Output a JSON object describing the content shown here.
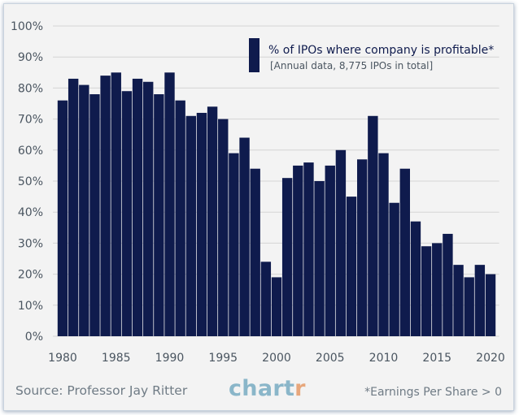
{
  "chart_data": {
    "type": "bar",
    "legend": {
      "label": "% of IPOs where company is profitable*",
      "note": "[Annual data, 8,775 IPOs in total]",
      "placement": "top-right"
    },
    "colors": {
      "bar": "#0f1b4d",
      "axis_text": "#4a5560",
      "grid": "#d4d4d4",
      "background": "#f3f3f3"
    },
    "ylim": [
      0,
      100
    ],
    "xlim": [
      1980,
      2020
    ],
    "grid": "horizontal",
    "y_ticks": [
      0,
      10,
      20,
      30,
      40,
      50,
      60,
      70,
      80,
      90,
      100
    ],
    "y_tick_labels": [
      "0%",
      "10%",
      "20%",
      "30%",
      "40%",
      "50%",
      "60%",
      "70%",
      "80%",
      "90%",
      "100%"
    ],
    "x_ticks": [
      1980,
      1985,
      1990,
      1995,
      2000,
      2005,
      2010,
      2015,
      2020
    ],
    "x_tick_labels": [
      "1980",
      "1985",
      "1990",
      "1995",
      "2000",
      "2005",
      "2010",
      "2015",
      "2020"
    ],
    "categories": [
      1980,
      1981,
      1982,
      1983,
      1984,
      1985,
      1986,
      1987,
      1988,
      1989,
      1990,
      1991,
      1992,
      1993,
      1994,
      1995,
      1996,
      1997,
      1998,
      1999,
      2000,
      2001,
      2002,
      2003,
      2004,
      2005,
      2006,
      2007,
      2008,
      2009,
      2010,
      2011,
      2012,
      2013,
      2014,
      2015,
      2016,
      2017,
      2018,
      2019,
      2020
    ],
    "values": [
      76,
      83,
      81,
      78,
      84,
      85,
      79,
      83,
      82,
      78,
      85,
      76,
      71,
      72,
      74,
      70,
      59,
      64,
      54,
      24,
      19,
      51,
      55,
      56,
      50,
      55,
      60,
      45,
      57,
      71,
      59,
      43,
      54,
      37,
      29,
      30,
      33,
      23,
      19,
      23,
      20
    ]
  },
  "footer": {
    "source": "Source: Professor Jay Ritter",
    "brand_main": "chart",
    "brand_accent": "r",
    "footnote": "*Earnings Per Share > 0"
  }
}
